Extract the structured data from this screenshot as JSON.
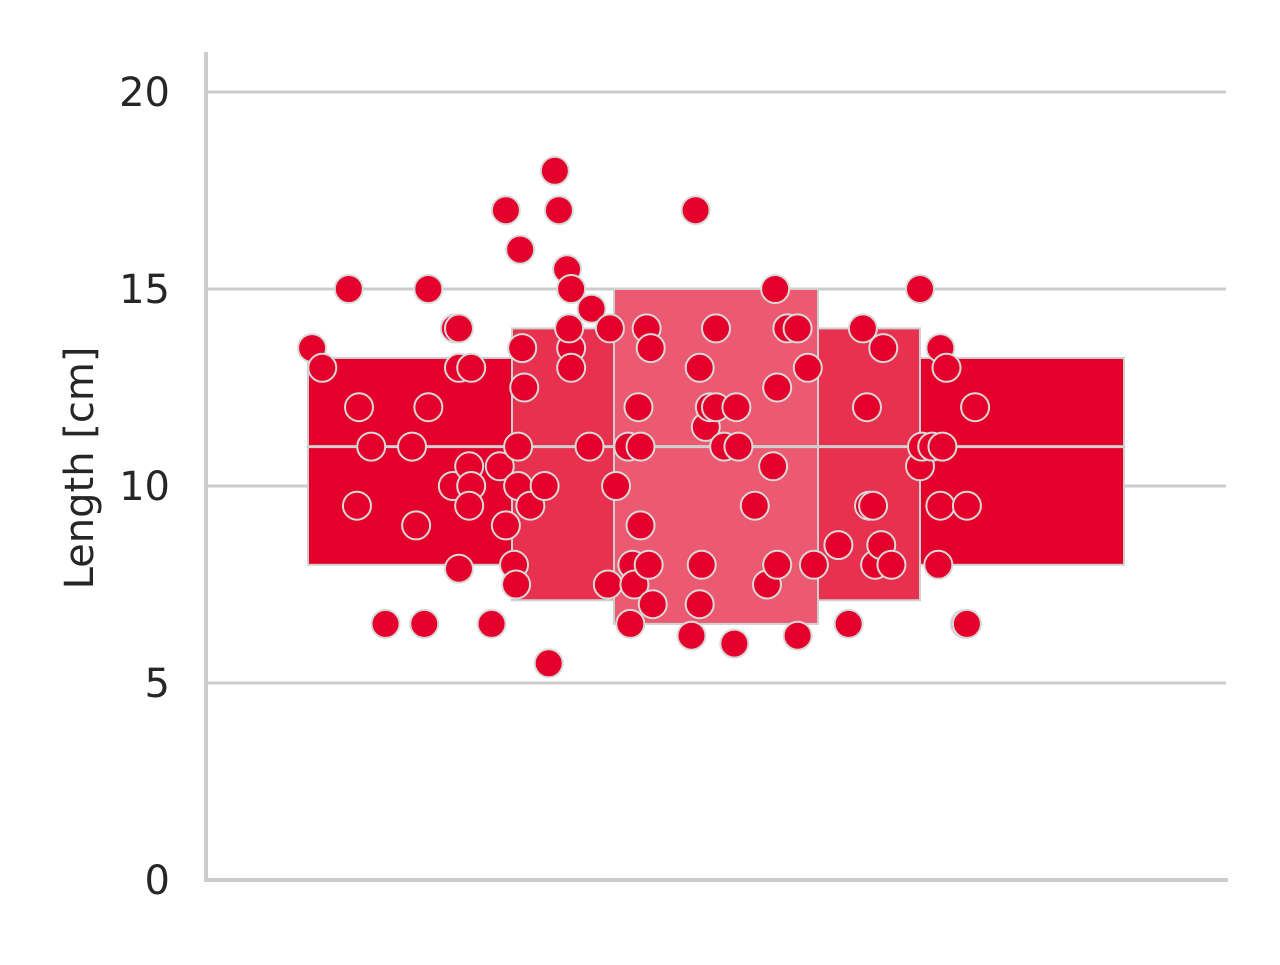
{
  "chart_data": {
    "type": "boxen",
    "title": "",
    "xlabel": "",
    "ylabel": "Length [cm]",
    "ylim": [
      0,
      21
    ],
    "yticks": [
      0,
      5,
      10,
      15,
      20
    ],
    "grid": {
      "y": true,
      "x": false
    },
    "legend": null,
    "colors": {
      "points": "#e4002b",
      "box_levels": [
        "#e4002b",
        "#e8304f",
        "#ec5a72"
      ],
      "point_edge": "#d9d9d9",
      "box_edge": "#d0d0d0",
      "grid": "#cccccc",
      "axis": "#cccccc"
    },
    "boxen_levels": [
      {
        "level": 1,
        "low": 8.0,
        "high": 13.25,
        "span": 1.0
      },
      {
        "level": 2,
        "low": 7.1,
        "high": 14.0,
        "span": 0.5
      },
      {
        "level": 3,
        "low": 6.5,
        "high": 15.0,
        "span": 0.25
      }
    ],
    "median": 11.0,
    "jitter_range": [
      -1,
      1
    ],
    "points": [
      {
        "x": -0.99,
        "y": 13.5
      },
      {
        "x": -0.965,
        "y": 13.0
      },
      {
        "x": -0.9,
        "y": 15.0
      },
      {
        "x": -0.875,
        "y": 12.0
      },
      {
        "x": -0.88,
        "y": 9.5
      },
      {
        "x": -0.845,
        "y": 11.0
      },
      {
        "x": -0.81,
        "y": 6.5
      },
      {
        "x": -0.745,
        "y": 11.0
      },
      {
        "x": -0.735,
        "y": 9.0
      },
      {
        "x": -0.715,
        "y": 6.5
      },
      {
        "x": -0.705,
        "y": 12.0
      },
      {
        "x": -0.705,
        "y": 15.0
      },
      {
        "x": -0.645,
        "y": 10.0
      },
      {
        "x": -0.64,
        "y": 14.0
      },
      {
        "x": -0.63,
        "y": 14.0
      },
      {
        "x": -0.63,
        "y": 13.0
      },
      {
        "x": -0.63,
        "y": 7.9
      },
      {
        "x": -0.605,
        "y": 10.5
      },
      {
        "x": -0.6,
        "y": 10.0
      },
      {
        "x": -0.605,
        "y": 9.5
      },
      {
        "x": -0.6,
        "y": 13.0
      },
      {
        "x": -0.55,
        "y": 6.5
      },
      {
        "x": -0.53,
        "y": 10.5
      },
      {
        "x": -0.515,
        "y": 9.0
      },
      {
        "x": -0.515,
        "y": 17.0
      },
      {
        "x": -0.495,
        "y": 8.0
      },
      {
        "x": -0.49,
        "y": 7.5
      },
      {
        "x": -0.485,
        "y": 11.0
      },
      {
        "x": -0.485,
        "y": 10.0
      },
      {
        "x": -0.48,
        "y": 16.0
      },
      {
        "x": -0.475,
        "y": 13.5
      },
      {
        "x": -0.47,
        "y": 12.5
      },
      {
        "x": -0.455,
        "y": 9.5
      },
      {
        "x": -0.42,
        "y": 10.0
      },
      {
        "x": -0.41,
        "y": 5.5
      },
      {
        "x": -0.395,
        "y": 18.0
      },
      {
        "x": -0.385,
        "y": 17.0
      },
      {
        "x": -0.365,
        "y": 15.5
      },
      {
        "x": -0.355,
        "y": 13.5
      },
      {
        "x": -0.355,
        "y": 15.0
      },
      {
        "x": -0.36,
        "y": 14.0
      },
      {
        "x": -0.355,
        "y": 13.0
      },
      {
        "x": -0.305,
        "y": 14.5
      },
      {
        "x": -0.31,
        "y": 11.0
      },
      {
        "x": -0.265,
        "y": 7.5
      },
      {
        "x": -0.26,
        "y": 14.0
      },
      {
        "x": -0.245,
        "y": 10.0
      },
      {
        "x": -0.215,
        "y": 11.0
      },
      {
        "x": -0.21,
        "y": 6.5
      },
      {
        "x": -0.205,
        "y": 8.0
      },
      {
        "x": -0.2,
        "y": 7.5
      },
      {
        "x": -0.19,
        "y": 12.0
      },
      {
        "x": -0.185,
        "y": 9.0
      },
      {
        "x": -0.185,
        "y": 11.0
      },
      {
        "x": -0.17,
        "y": 14.0
      },
      {
        "x": -0.165,
        "y": 8.0
      },
      {
        "x": -0.16,
        "y": 13.5
      },
      {
        "x": -0.155,
        "y": 7.0
      },
      {
        "x": -0.06,
        "y": 6.2
      },
      {
        "x": -0.05,
        "y": 17.0
      },
      {
        "x": -0.04,
        "y": 13.0
      },
      {
        "x": -0.035,
        "y": 8.0
      },
      {
        "x": -0.04,
        "y": 7.0
      },
      {
        "x": -0.025,
        "y": 11.5
      },
      {
        "x": -0.015,
        "y": 12.0
      },
      {
        "x": 0.0,
        "y": 12.0
      },
      {
        "x": 0.0,
        "y": 14.0
      },
      {
        "x": 0.02,
        "y": 11.0
      },
      {
        "x": 0.045,
        "y": 6.0
      },
      {
        "x": 0.05,
        "y": 12.0
      },
      {
        "x": 0.055,
        "y": 11.0
      },
      {
        "x": 0.095,
        "y": 9.5
      },
      {
        "x": 0.125,
        "y": 7.5
      },
      {
        "x": 0.14,
        "y": 10.5
      },
      {
        "x": 0.145,
        "y": 15.0
      },
      {
        "x": 0.15,
        "y": 12.5
      },
      {
        "x": 0.15,
        "y": 8.0
      },
      {
        "x": 0.175,
        "y": 14.0
      },
      {
        "x": 0.2,
        "y": 14.0
      },
      {
        "x": 0.2,
        "y": 6.2
      },
      {
        "x": 0.225,
        "y": 13.0
      },
      {
        "x": 0.24,
        "y": 8.0
      },
      {
        "x": 0.3,
        "y": 8.5
      },
      {
        "x": 0.325,
        "y": 6.5
      },
      {
        "x": 0.36,
        "y": 14.0
      },
      {
        "x": 0.37,
        "y": 12.0
      },
      {
        "x": 0.375,
        "y": 9.5
      },
      {
        "x": 0.385,
        "y": 9.5
      },
      {
        "x": 0.39,
        "y": 8.0
      },
      {
        "x": 0.405,
        "y": 8.5
      },
      {
        "x": 0.41,
        "y": 13.5
      },
      {
        "x": 0.43,
        "y": 8.0
      },
      {
        "x": 0.5,
        "y": 10.5
      },
      {
        "x": 0.5,
        "y": 15.0
      },
      {
        "x": 0.505,
        "y": 11.0
      },
      {
        "x": 0.53,
        "y": 11.0
      },
      {
        "x": 0.545,
        "y": 8.0
      },
      {
        "x": 0.55,
        "y": 9.5
      },
      {
        "x": 0.55,
        "y": 13.5
      },
      {
        "x": 0.555,
        "y": 11.0
      },
      {
        "x": 0.565,
        "y": 13.0
      },
      {
        "x": 0.61,
        "y": 6.5
      },
      {
        "x": 0.615,
        "y": 6.5
      },
      {
        "x": 0.615,
        "y": 9.5
      },
      {
        "x": 0.635,
        "y": 12.0
      }
    ]
  }
}
